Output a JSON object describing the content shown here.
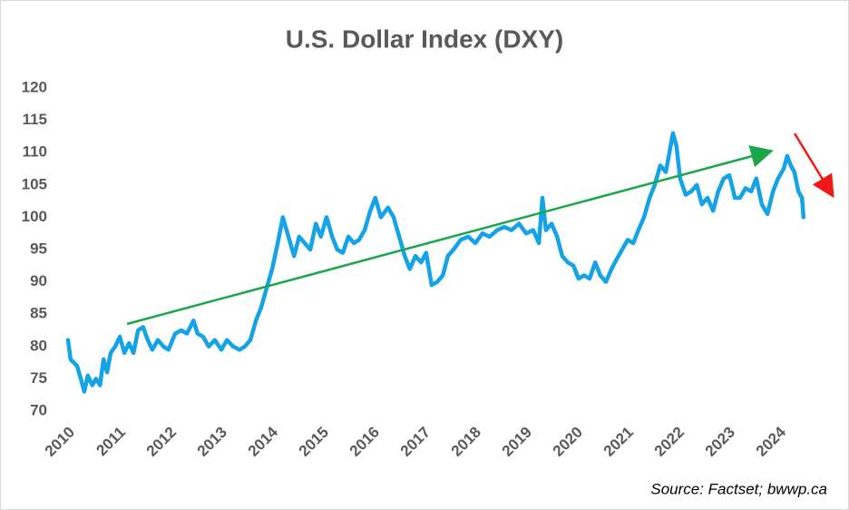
{
  "chart_data": {
    "type": "line",
    "title": "U.S. Dollar Index (DXY)",
    "source": "Source: Factset; bwwp.ca",
    "color": "#14a3e6",
    "grid": false,
    "xlim": [
      2009.9,
      2024.6
    ],
    "xticks": [
      2010,
      2011,
      2012,
      2013,
      2014,
      2015,
      2016,
      2017,
      2018,
      2019,
      2020,
      2021,
      2022,
      2023,
      2024
    ],
    "ylim": [
      70,
      120
    ],
    "yticks": [
      70,
      75,
      80,
      85,
      90,
      95,
      100,
      105,
      110,
      115,
      120
    ],
    "x": [
      2009.91,
      2009.96,
      2010.09,
      2010.18,
      2010.23,
      2010.3,
      2010.39,
      2010.46,
      2010.54,
      2010.61,
      2010.68,
      2010.75,
      2010.84,
      2010.93,
      2011.02,
      2011.11,
      2011.2,
      2011.29,
      2011.39,
      2011.48,
      2011.57,
      2011.68,
      2011.79,
      2011.89,
      2012.02,
      2012.14,
      2012.25,
      2012.38,
      2012.46,
      2012.57,
      2012.68,
      2012.8,
      2012.93,
      2013.04,
      2013.16,
      2013.29,
      2013.39,
      2013.5,
      2013.61,
      2013.71,
      2013.82,
      2013.93,
      2014.04,
      2014.14,
      2014.25,
      2014.36,
      2014.46,
      2014.57,
      2014.68,
      2014.79,
      2014.89,
      2015.0,
      2015.11,
      2015.21,
      2015.32,
      2015.43,
      2015.54,
      2015.64,
      2015.75,
      2015.86,
      2015.96,
      2016.07,
      2016.21,
      2016.32,
      2016.43,
      2016.54,
      2016.64,
      2016.75,
      2016.86,
      2016.96,
      2017.07,
      2017.18,
      2017.29,
      2017.39,
      2017.5,
      2017.64,
      2017.79,
      2017.93,
      2018.07,
      2018.21,
      2018.36,
      2018.5,
      2018.64,
      2018.79,
      2018.93,
      2019.07,
      2019.18,
      2019.25,
      2019.32,
      2019.43,
      2019.54,
      2019.64,
      2019.75,
      2019.86,
      2019.96,
      2020.07,
      2020.18,
      2020.29,
      2020.39,
      2020.5,
      2020.61,
      2020.71,
      2020.82,
      2020.93,
      2021.04,
      2021.14,
      2021.25,
      2021.36,
      2021.46,
      2021.57,
      2021.68,
      2021.75,
      2021.82,
      2021.89,
      2021.96,
      2022.07,
      2022.18,
      2022.29,
      2022.39,
      2022.5,
      2022.61,
      2022.71,
      2022.82,
      2022.93,
      2023.04,
      2023.14,
      2023.25,
      2023.36,
      2023.46,
      2023.57,
      2023.68,
      2023.79,
      2023.89,
      2024.0,
      2024.07,
      2024.14,
      2024.21,
      2024.29,
      2024.36,
      2024.39
    ],
    "values": [
      81,
      78,
      77,
      74.5,
      73,
      75.5,
      74,
      75,
      74,
      78,
      76,
      79,
      80,
      81.5,
      79,
      80.5,
      79,
      82.5,
      83,
      81,
      79.5,
      81,
      80,
      79.5,
      82,
      82.5,
      82,
      84,
      82,
      81.5,
      80,
      81,
      79.5,
      81,
      80,
      79.5,
      80,
      81,
      84,
      86,
      89,
      92,
      96,
      100,
      97,
      94,
      97,
      96,
      95,
      99,
      97,
      100,
      97,
      95,
      94.5,
      97,
      96,
      96.5,
      98,
      101,
      103,
      100,
      101.5,
      100,
      97,
      94,
      92,
      94,
      93,
      94.5,
      89.5,
      90,
      91,
      94,
      95,
      96.5,
      97,
      96,
      97.5,
      97,
      98,
      98.5,
      98,
      99,
      97.5,
      98,
      96,
      103,
      98,
      99,
      97,
      94,
      93,
      92.5,
      90.5,
      91,
      90.5,
      93,
      91,
      90,
      92,
      93.5,
      95,
      96.5,
      96,
      98,
      100,
      103,
      105,
      108,
      107,
      110,
      113,
      111,
      106,
      103.5,
      104,
      105,
      102,
      103,
      101,
      104,
      106,
      106.5,
      103,
      103,
      104.5,
      104,
      106,
      102,
      100.5,
      104,
      106,
      107.5,
      109.5,
      108,
      107,
      104,
      103,
      100
    ]
  }
}
